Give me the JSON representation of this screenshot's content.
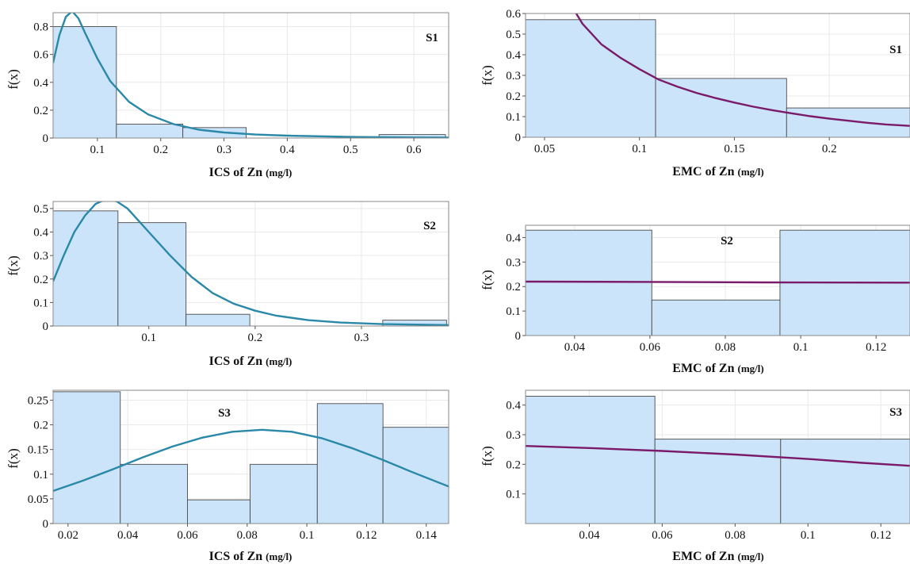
{
  "colors": {
    "bar_fill": "#cce4fa",
    "bar_stroke": "#4a4a4a",
    "ics_curve": "#2a88a8",
    "emc_curve": "#7a1a6a",
    "grid": "#e9e9e9",
    "axis": "#888888"
  },
  "chart_data": [
    {
      "type": "bar",
      "label": "S1",
      "xlabel": "ICS of Zn",
      "xlabel_unit": "(mg/l)",
      "ylabel": "f(x)",
      "xlim": [
        0.03,
        0.655
      ],
      "ylim": [
        0,
        0.9
      ],
      "xticks": [
        0.1,
        0.2,
        0.3,
        0.4,
        0.5,
        0.6
      ],
      "xtick_labels": [
        "0.1",
        "0.2",
        "0.3",
        "0.4",
        "0.5",
        "0.6"
      ],
      "yticks": [
        0,
        0.2,
        0.4,
        0.6,
        0.8
      ],
      "ytick_labels": [
        "0",
        "0.2",
        "0.4",
        "0.6",
        "0.8"
      ],
      "bins": [
        {
          "x0": 0.03,
          "x1": 0.13,
          "value": 0.8
        },
        {
          "x0": 0.13,
          "x1": 0.235,
          "value": 0.1
        },
        {
          "x0": 0.235,
          "x1": 0.335,
          "value": 0.075
        },
        {
          "x0": 0.335,
          "x1": 0.44,
          "value": 0.0
        },
        {
          "x0": 0.44,
          "x1": 0.545,
          "value": 0.0
        },
        {
          "x0": 0.545,
          "x1": 0.65,
          "value": 0.025
        }
      ],
      "curve": {
        "color_key": "ics_curve",
        "points": [
          [
            0.03,
            0.54
          ],
          [
            0.04,
            0.74
          ],
          [
            0.05,
            0.87
          ],
          [
            0.06,
            0.91
          ],
          [
            0.07,
            0.86
          ],
          [
            0.08,
            0.76
          ],
          [
            0.1,
            0.57
          ],
          [
            0.12,
            0.41
          ],
          [
            0.15,
            0.26
          ],
          [
            0.18,
            0.17
          ],
          [
            0.22,
            0.1
          ],
          [
            0.26,
            0.06
          ],
          [
            0.3,
            0.04
          ],
          [
            0.35,
            0.025
          ],
          [
            0.4,
            0.017
          ],
          [
            0.5,
            0.008
          ],
          [
            0.6,
            0.004
          ],
          [
            0.655,
            0.003
          ]
        ]
      }
    },
    {
      "type": "bar",
      "label": "S1",
      "xlabel": "EMC of Zn",
      "xlabel_unit": "(mg/l)",
      "ylabel": "f(x)",
      "xlim": [
        0.04,
        0.2425
      ],
      "ylim": [
        0,
        0.6
      ],
      "xticks": [
        0.05,
        0.1,
        0.15,
        0.2
      ],
      "xtick_labels": [
        "0.05",
        "0.1",
        "0.15",
        "0.2"
      ],
      "yticks": [
        0,
        0.1,
        0.2,
        0.3,
        0.4,
        0.5,
        0.6
      ],
      "ytick_labels": [
        "0",
        "0.1",
        "0.2",
        "0.3",
        "0.4",
        "0.5",
        "0.6"
      ],
      "bins": [
        {
          "x0": 0.04,
          "x1": 0.1085,
          "value": 0.57
        },
        {
          "x0": 0.1085,
          "x1": 0.1775,
          "value": 0.285
        },
        {
          "x0": 0.1775,
          "x1": 0.2425,
          "value": 0.142
        }
      ],
      "curve": {
        "color_key": "emc_curve",
        "points": [
          [
            0.066,
            0.61
          ],
          [
            0.07,
            0.55
          ],
          [
            0.08,
            0.45
          ],
          [
            0.09,
            0.385
          ],
          [
            0.1,
            0.33
          ],
          [
            0.11,
            0.28
          ],
          [
            0.12,
            0.245
          ],
          [
            0.13,
            0.215
          ],
          [
            0.14,
            0.19
          ],
          [
            0.15,
            0.168
          ],
          [
            0.16,
            0.148
          ],
          [
            0.17,
            0.131
          ],
          [
            0.18,
            0.116
          ],
          [
            0.19,
            0.102
          ],
          [
            0.2,
            0.09
          ],
          [
            0.21,
            0.08
          ],
          [
            0.22,
            0.07
          ],
          [
            0.23,
            0.062
          ],
          [
            0.2425,
            0.055
          ]
        ]
      }
    },
    {
      "type": "bar",
      "label": "S2",
      "xlabel": "ICS of Zn",
      "xlabel_unit": "(mg/l)",
      "ylabel": "f(x)",
      "xlim": [
        0.01,
        0.382
      ],
      "ylim": [
        0,
        0.53
      ],
      "xticks": [
        0.1,
        0.2,
        0.3
      ],
      "xtick_labels": [
        "0.1",
        "0.2",
        "0.3"
      ],
      "yticks": [
        0,
        0.1,
        0.2,
        0.3,
        0.4,
        0.5
      ],
      "ytick_labels": [
        "0",
        "0.1",
        "0.2",
        "0.3",
        "0.4",
        "0.5"
      ],
      "bins": [
        {
          "x0": 0.01,
          "x1": 0.071,
          "value": 0.49
        },
        {
          "x0": 0.071,
          "x1": 0.135,
          "value": 0.44
        },
        {
          "x0": 0.135,
          "x1": 0.195,
          "value": 0.05
        },
        {
          "x0": 0.195,
          "x1": 0.258,
          "value": 0.0
        },
        {
          "x0": 0.258,
          "x1": 0.32,
          "value": 0.0
        },
        {
          "x0": 0.32,
          "x1": 0.38,
          "value": 0.025
        }
      ],
      "curve": {
        "color_key": "ics_curve",
        "points": [
          [
            0.01,
            0.19
          ],
          [
            0.02,
            0.3
          ],
          [
            0.03,
            0.4
          ],
          [
            0.04,
            0.47
          ],
          [
            0.05,
            0.52
          ],
          [
            0.06,
            0.54
          ],
          [
            0.07,
            0.53
          ],
          [
            0.08,
            0.5
          ],
          [
            0.09,
            0.45
          ],
          [
            0.1,
            0.4
          ],
          [
            0.12,
            0.3
          ],
          [
            0.14,
            0.21
          ],
          [
            0.16,
            0.14
          ],
          [
            0.18,
            0.095
          ],
          [
            0.2,
            0.065
          ],
          [
            0.22,
            0.044
          ],
          [
            0.25,
            0.025
          ],
          [
            0.28,
            0.015
          ],
          [
            0.32,
            0.008
          ],
          [
            0.382,
            0.004
          ]
        ]
      }
    },
    {
      "type": "bar",
      "label": "S2",
      "xlabel": "EMC of Zn",
      "xlabel_unit": "(mg/l)",
      "ylabel": "f(x)",
      "xlim": [
        0.027,
        0.129
      ],
      "ylim": [
        0,
        0.45
      ],
      "xticks": [
        0.04,
        0.06,
        0.08,
        0.1,
        0.12
      ],
      "xtick_labels": [
        "0.04",
        "0.06",
        "0.08",
        "0.1",
        "0.12"
      ],
      "yticks": [
        0,
        0.1,
        0.2,
        0.3,
        0.4
      ],
      "ytick_labels": [
        "0",
        "0.1",
        "0.2",
        "0.3",
        "0.4"
      ],
      "bins": [
        {
          "x0": 0.027,
          "x1": 0.0605,
          "value": 0.43
        },
        {
          "x0": 0.0605,
          "x1": 0.0945,
          "value": 0.145
        },
        {
          "x0": 0.0945,
          "x1": 0.129,
          "value": 0.43
        }
      ],
      "curve": {
        "color_key": "emc_curve",
        "points": [
          [
            0.027,
            0.22
          ],
          [
            0.06,
            0.219
          ],
          [
            0.09,
            0.217
          ],
          [
            0.129,
            0.216
          ]
        ]
      }
    },
    {
      "type": "bar",
      "label": "S3",
      "xlabel": "ICS of Zn",
      "xlabel_unit": "(mg/l)",
      "ylabel": "f(x)",
      "xlim": [
        0.015,
        0.1475
      ],
      "ylim": [
        0,
        0.27
      ],
      "xticks": [
        0.02,
        0.04,
        0.06,
        0.08,
        0.1,
        0.12,
        0.14
      ],
      "xtick_labels": [
        "0.02",
        "0.04",
        "0.06",
        "0.08",
        "0.1",
        "0.12",
        "0.14"
      ],
      "yticks": [
        0,
        0.05,
        0.1,
        0.15,
        0.2,
        0.25
      ],
      "ytick_labels": [
        "0",
        "0.05",
        "0.1",
        "0.15",
        "0.2",
        "0.25"
      ],
      "bins": [
        {
          "x0": 0.015,
          "x1": 0.0375,
          "value": 0.267
        },
        {
          "x0": 0.0375,
          "x1": 0.06,
          "value": 0.12
        },
        {
          "x0": 0.06,
          "x1": 0.081,
          "value": 0.048
        },
        {
          "x0": 0.081,
          "x1": 0.1035,
          "value": 0.12
        },
        {
          "x0": 0.1035,
          "x1": 0.1255,
          "value": 0.243
        },
        {
          "x0": 0.1255,
          "x1": 0.1475,
          "value": 0.195
        }
      ],
      "curve": {
        "color_key": "ics_curve",
        "points": [
          [
            0.015,
            0.066
          ],
          [
            0.025,
            0.087
          ],
          [
            0.035,
            0.11
          ],
          [
            0.045,
            0.134
          ],
          [
            0.055,
            0.156
          ],
          [
            0.065,
            0.174
          ],
          [
            0.075,
            0.186
          ],
          [
            0.085,
            0.19
          ],
          [
            0.095,
            0.186
          ],
          [
            0.105,
            0.173
          ],
          [
            0.115,
            0.153
          ],
          [
            0.125,
            0.13
          ],
          [
            0.135,
            0.105
          ],
          [
            0.1475,
            0.075
          ]
        ]
      }
    },
    {
      "type": "bar",
      "label": "S3",
      "xlabel": "EMC of Zn",
      "xlabel_unit": "(mg/l)",
      "ylabel": "f(x)",
      "xlim": [
        0.0225,
        0.128
      ],
      "ylim": [
        0,
        0.45
      ],
      "xticks": [
        0.04,
        0.06,
        0.08,
        0.1,
        0.12
      ],
      "xtick_labels": [
        "0.04",
        "0.06",
        "0.08",
        "0.1",
        "0.12"
      ],
      "yticks": [
        0.1,
        0.2,
        0.3,
        0.4
      ],
      "ytick_labels": [
        "0.1",
        "0.2",
        "0.3",
        "0.4"
      ],
      "bins": [
        {
          "x0": 0.0225,
          "x1": 0.058,
          "value": 0.43
        },
        {
          "x0": 0.058,
          "x1": 0.0925,
          "value": 0.285
        },
        {
          "x0": 0.0925,
          "x1": 0.128,
          "value": 0.285
        }
      ],
      "curve": {
        "color_key": "emc_curve",
        "points": [
          [
            0.0225,
            0.262
          ],
          [
            0.04,
            0.255
          ],
          [
            0.06,
            0.245
          ],
          [
            0.08,
            0.233
          ],
          [
            0.1,
            0.218
          ],
          [
            0.115,
            0.205
          ],
          [
            0.128,
            0.195
          ]
        ]
      }
    }
  ]
}
